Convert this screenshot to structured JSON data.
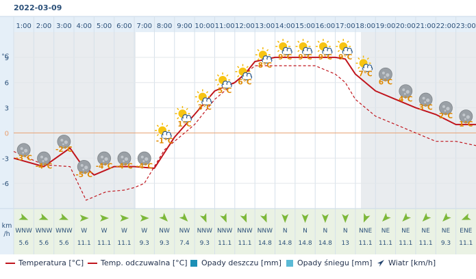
{
  "header": {
    "date": "2022-03-09"
  },
  "chart_data": {
    "type": "line",
    "title": "",
    "hours": [
      "1:00",
      "2:00",
      "3:00",
      "4:00",
      "5:00",
      "6:00",
      "7:00",
      "8:00",
      "9:00",
      "10:00",
      "11:00",
      "12:00",
      "13:00",
      "14:00",
      "15:00",
      "16:00",
      "17:00",
      "18:00",
      "19:00",
      "20:00",
      "21:00",
      "22:00",
      "23:00"
    ],
    "y_unit": "°C",
    "y_ticks": [
      9,
      6,
      3,
      0,
      -3,
      -6
    ],
    "ylim": [
      -9,
      12
    ],
    "series": [
      {
        "name": "Temperatura [°C]",
        "style": "solid",
        "color": "#c0141c",
        "x": [
          0,
          1.5,
          2.8,
          3.3,
          4.0,
          5.0,
          6.0,
          7.0,
          8.0,
          9.0,
          10.0,
          11.0,
          11.5,
          12.0,
          13.0,
          14.0,
          15.0,
          16.0,
          16.5,
          17.0,
          18.0,
          19.0,
          20.0,
          21.0,
          22.0,
          23.0,
          24.0
        ],
        "values": [
          -3.0,
          -4.0,
          -1.8,
          -3.5,
          -5.0,
          -4.0,
          -4.0,
          -4.2,
          -0.5,
          2.2,
          5.0,
          6.0,
          7.0,
          8.5,
          9.0,
          9.0,
          9.0,
          9.0,
          8.8,
          7.0,
          5.0,
          4.0,
          3.0,
          2.2,
          1.0,
          1.0,
          1.0
        ]
      },
      {
        "name": "Temp. odczuwalna [°C]",
        "style": "dashed",
        "color": "#c0141c",
        "x": [
          0,
          1.5,
          2.8,
          3.6,
          4.6,
          5.5,
          6.0,
          6.5,
          7.5,
          9.0,
          10.0,
          11.0,
          12.0,
          13.0,
          14.0,
          15.0,
          16.0,
          16.5,
          17.0,
          18.0,
          19.0,
          20.0,
          21.0,
          22.0,
          23.0,
          24.0
        ],
        "values": [
          -2.2,
          -3.8,
          -4.0,
          -8.0,
          -7.0,
          -6.8,
          -6.5,
          -6.0,
          -2.0,
          1.0,
          4.0,
          6.0,
          8.0,
          8.0,
          8.0,
          8.0,
          7.0,
          6.0,
          4.0,
          2.0,
          1.0,
          0.0,
          -1.0,
          -1.0,
          -1.5,
          -2.0
        ]
      }
    ],
    "data_labels": [
      {
        "hour": 0.5,
        "value": -3,
        "text": "-3°C",
        "icon": "moon-cloud-icon"
      },
      {
        "hour": 1.5,
        "value": -4,
        "text": "-4°C",
        "icon": "moon-cloud-icon"
      },
      {
        "hour": 2.5,
        "value": -2,
        "text": "-2°C",
        "icon": "moon-cloud-icon"
      },
      {
        "hour": 3.5,
        "value": -5,
        "text": "-5°C",
        "icon": "moon-cloud-icon"
      },
      {
        "hour": 4.5,
        "value": -4,
        "text": "-4°C",
        "icon": "moon-cloud-icon"
      },
      {
        "hour": 5.5,
        "value": -4,
        "text": "-4°C",
        "icon": "moon-cloud-icon"
      },
      {
        "hour": 6.5,
        "value": -4,
        "text": "-4°C",
        "icon": "moon-cloud-icon"
      },
      {
        "hour": 7.5,
        "value": -1,
        "text": "-1°C",
        "icon": "sun-cloud-icon"
      },
      {
        "hour": 8.5,
        "value": 1,
        "text": "1°C",
        "icon": "sun-cloud-icon"
      },
      {
        "hour": 9.5,
        "value": 3,
        "text": "3°C",
        "icon": "sun-cloud-icon"
      },
      {
        "hour": 10.5,
        "value": 5,
        "text": "5°C",
        "icon": "sun-cloud-icon"
      },
      {
        "hour": 11.5,
        "value": 6,
        "text": "6°C",
        "icon": "sun-cloud-icon"
      },
      {
        "hour": 12.5,
        "value": 8,
        "text": "8°C",
        "icon": "sun-cloud-icon"
      },
      {
        "hour": 13.5,
        "value": 9,
        "text": "9°C",
        "icon": "sun-cloud-icon"
      },
      {
        "hour": 14.5,
        "value": 9,
        "text": "9°C",
        "icon": "sun-cloud-icon"
      },
      {
        "hour": 15.5,
        "value": 9,
        "text": "9°C",
        "icon": "sun-cloud-icon"
      },
      {
        "hour": 16.5,
        "value": 9,
        "text": "9°C",
        "icon": "sun-cloud-icon"
      },
      {
        "hour": 17.5,
        "value": 7,
        "text": "7°C",
        "icon": "sun-cloud-icon"
      },
      {
        "hour": 18.5,
        "value": 6,
        "text": "6°C",
        "icon": "moon-cloud-icon"
      },
      {
        "hour": 19.5,
        "value": 4,
        "text": "4°C",
        "icon": "moon-cloud-icon"
      },
      {
        "hour": 20.5,
        "value": 3,
        "text": "3°C",
        "icon": "moon-cloud-icon"
      },
      {
        "hour": 21.5,
        "value": 2,
        "text": "2°C",
        "icon": "moon-cloud-icon"
      },
      {
        "hour": 22.5,
        "value": 1,
        "text": "1°C",
        "icon": "moon-cloud-icon"
      },
      {
        "hour": 23.5,
        "value": 1,
        "text": "1°C",
        "icon": "moon-cloud-icon"
      }
    ],
    "wind": {
      "unit_line1": "km",
      "unit_line2": "/h",
      "directions": [
        "WNW",
        "WNW",
        "WNW",
        "W",
        "W",
        "W",
        "W",
        "NW",
        "NW",
        "NNW",
        "NNW",
        "NNW",
        "NNW",
        "N",
        "N",
        "N",
        "N",
        "NNE",
        "NE",
        "NE",
        "NE",
        "NE",
        "ENE"
      ],
      "speeds": [
        "5.6",
        "5.6",
        "5.6",
        "11.1",
        "11.1",
        "11.1",
        "9.3",
        "9.3",
        "7.4",
        "9.3",
        "11.1",
        "11.1",
        "14.8",
        "14.8",
        "14.8",
        "14.8",
        "13",
        "11.1",
        "11.1",
        "11.1",
        "11.1",
        "9.3",
        "11.1"
      ],
      "arrow_degrees": [
        112.5,
        112.5,
        112.5,
        90,
        90,
        90,
        90,
        135,
        135,
        157.5,
        157.5,
        157.5,
        157.5,
        180,
        180,
        180,
        180,
        202.5,
        225,
        225,
        225,
        225,
        247.5
      ]
    },
    "zero_line_color": "#e8a070",
    "temp_label_color": "#e08a00"
  },
  "legend": {
    "temperature": "Temperatura [°C]",
    "feels_like": "Temp. odczuwalna [°C]",
    "rain": "Opady deszczu [mm]",
    "snow": "Opady śniegu [mm]",
    "wind": "Wiatr [km/h]",
    "line_color": "#c0141c",
    "rain_color": "#1c8fb5",
    "snow_color": "#5bbad6"
  }
}
